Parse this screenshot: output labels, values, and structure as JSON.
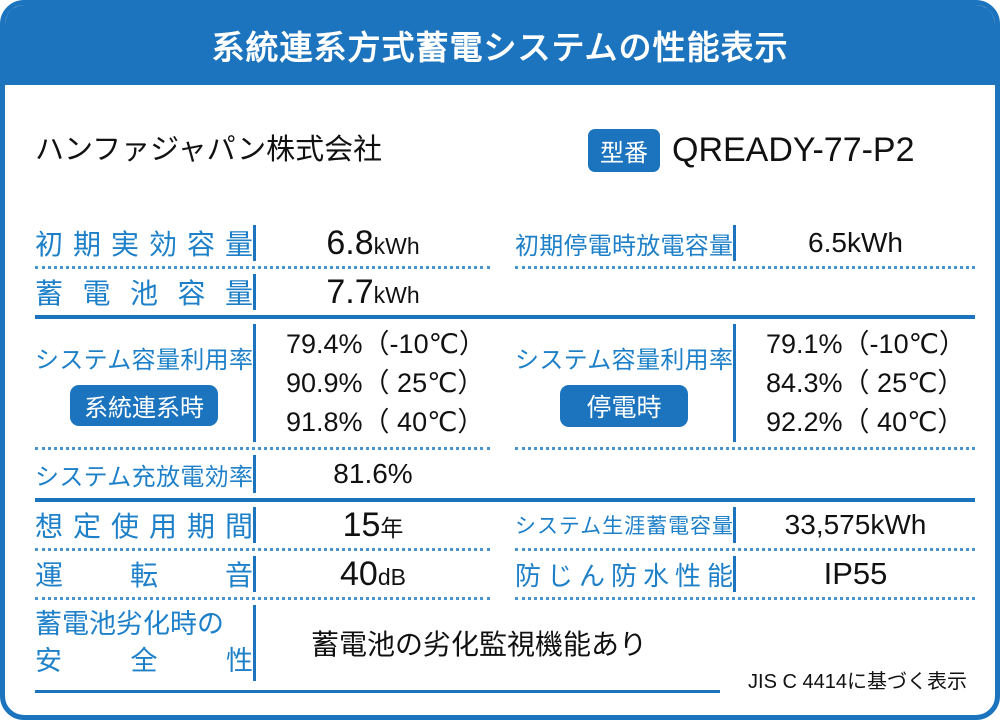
{
  "title": "系統連系方式蓄電システムの性能表示",
  "company": "ハンファジャパン株式会社",
  "model": {
    "badge": "型番",
    "number": "QREADY-77-P2"
  },
  "colors": {
    "primary_blue": "#1b74bd",
    "label_blue": "#1e80c8",
    "dotted_blue": "#4a94cf",
    "text": "#111111",
    "background": "#ffffff"
  },
  "specs": {
    "initial_effective_capacity": {
      "label": "初期実効容量",
      "value": "6.8",
      "unit": "kWh"
    },
    "initial_outage_discharge_capacity": {
      "label": "初期停電時放電容量",
      "value": "6.5kWh"
    },
    "battery_capacity": {
      "label": "蓄電池容量",
      "value": "7.7",
      "unit": "kWh"
    },
    "utilization_grid": {
      "label": "システム容量利用率",
      "badge": "系統連系時",
      "values": [
        "79.4%（-10℃）",
        "90.9%（ 25℃）",
        "91.8%（ 40℃）"
      ]
    },
    "utilization_outage": {
      "label": "システム容量利用率",
      "badge": "停電時",
      "values": [
        "79.1%（-10℃）",
        "84.3%（ 25℃）",
        "92.2%（ 40℃）"
      ]
    },
    "charge_discharge_efficiency": {
      "label": "システム充放電効率",
      "value": "81.6%"
    },
    "expected_usage_period": {
      "label": "想定使用期間",
      "value": "15",
      "unit": "年"
    },
    "lifetime_storage_capacity": {
      "label": "システム生涯蓄電容量",
      "value": "33,575kWh"
    },
    "operating_noise": {
      "label": "運転音",
      "value": "40",
      "unit": "dB"
    },
    "dust_water_resistance": {
      "label": "防じん防水性能",
      "value": "IP55"
    },
    "battery_degradation_safety": {
      "label_line1": "蓄電池劣化時の",
      "label_line2": "安全性",
      "value": "蓄電池の劣化監視機能あり"
    }
  },
  "footnote": "JIS C 4414に基づく表示"
}
